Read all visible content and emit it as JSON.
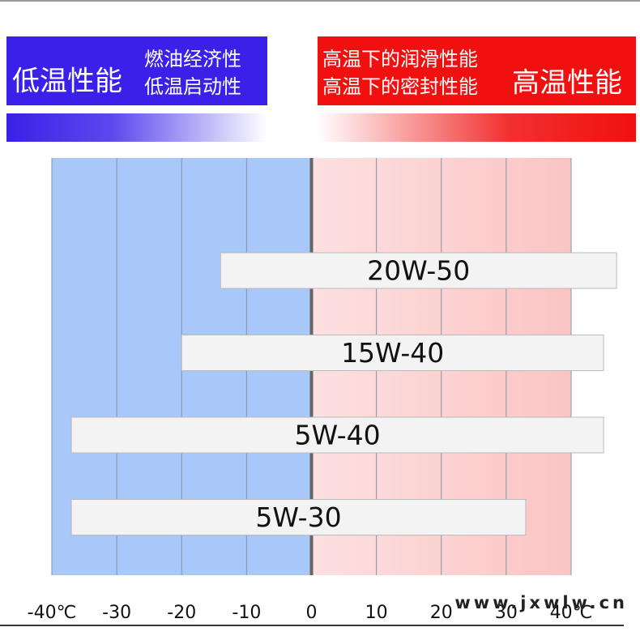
{
  "header": {
    "left_title": "低温性能",
    "left_lines": [
      "燃油经济性",
      "低温启动性"
    ],
    "right_lines": [
      "高温下的润滑性能",
      "高温下的密封性能"
    ],
    "right_title": "高温性能"
  },
  "chart_data": {
    "type": "range-bar",
    "categories": [
      "20W-50",
      "15W-40",
      "5W-40",
      "5W-30"
    ],
    "starts": [
      -14,
      -20,
      -37,
      -37
    ],
    "ends": [
      47,
      45,
      45,
      33
    ],
    "xlim": [
      -40,
      40
    ],
    "xticks": [
      {
        "value": -40,
        "label": "-40℃"
      },
      -30,
      -20,
      -10,
      0,
      10,
      20,
      30,
      {
        "value": 40,
        "label": "40℃"
      }
    ],
    "grid": true,
    "color": "#f3f3f3"
  },
  "watermark": "www.jxwlw.cn"
}
